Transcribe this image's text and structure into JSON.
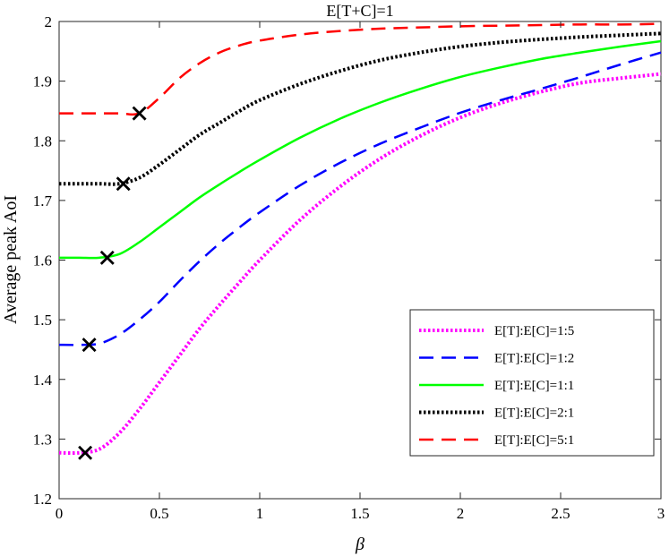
{
  "chart_data": {
    "type": "line",
    "title": "E[T+C]=1",
    "xlabel": "β",
    "ylabel": "Average peak AoI",
    "xlim": [
      0,
      3
    ],
    "ylim": [
      1.2,
      2
    ],
    "xticks": [
      0,
      0.5,
      1,
      1.5,
      2,
      2.5,
      3
    ],
    "xtick_labels": [
      "0",
      "0.5",
      "1",
      "1.5",
      "2",
      "2.5",
      "3"
    ],
    "yticks": [
      1.2,
      1.3,
      1.4,
      1.5,
      1.6,
      1.7,
      1.8,
      1.9,
      2
    ],
    "ytick_labels": [
      "1.2",
      "1.3",
      "1.4",
      "1.5",
      "1.6",
      "1.7",
      "1.8",
      "1.9",
      "2"
    ],
    "grid": false,
    "legend_position": "lower-right",
    "series": [
      {
        "name": "E[T]:E[C]=1:5",
        "color": "#ff00ff",
        "style": "dotted",
        "x": [
          0,
          0.1,
          0.2,
          0.3,
          0.4,
          0.5,
          0.6,
          0.7,
          0.8,
          0.9,
          1.0,
          1.2,
          1.4,
          1.6,
          1.8,
          2.0,
          2.2,
          2.4,
          2.6,
          2.8,
          3.0
        ],
        "y": [
          1.277,
          1.277,
          1.283,
          1.31,
          1.35,
          1.395,
          1.44,
          1.485,
          1.525,
          1.563,
          1.6,
          1.667,
          1.723,
          1.77,
          1.808,
          1.839,
          1.863,
          1.882,
          1.897,
          1.905,
          1.912
        ],
        "marker": {
          "x": 0.13,
          "y": 1.277
        }
      },
      {
        "name": "E[T]:E[C]=1:2",
        "color": "#0000ff",
        "style": "dashed",
        "x": [
          0,
          0.1,
          0.2,
          0.3,
          0.4,
          0.5,
          0.6,
          0.7,
          0.8,
          0.9,
          1.0,
          1.2,
          1.4,
          1.6,
          1.8,
          2.0,
          2.2,
          2.4,
          2.6,
          2.8,
          3.0
        ],
        "y": [
          1.458,
          1.458,
          1.46,
          1.475,
          1.5,
          1.53,
          1.565,
          1.598,
          1.628,
          1.655,
          1.68,
          1.725,
          1.763,
          1.795,
          1.822,
          1.847,
          1.868,
          1.887,
          1.907,
          1.928,
          1.948
        ],
        "marker": {
          "x": 0.15,
          "y": 1.458
        }
      },
      {
        "name": "E[T]:E[C]=1:1",
        "color": "#00ff00",
        "style": "solid",
        "x": [
          0,
          0.1,
          0.2,
          0.3,
          0.4,
          0.5,
          0.6,
          0.7,
          0.8,
          0.9,
          1.0,
          1.2,
          1.4,
          1.6,
          1.8,
          2.0,
          2.2,
          2.4,
          2.6,
          2.8,
          3.0
        ],
        "y": [
          1.604,
          1.604,
          1.604,
          1.61,
          1.63,
          1.655,
          1.68,
          1.705,
          1.727,
          1.748,
          1.768,
          1.805,
          1.837,
          1.864,
          1.887,
          1.907,
          1.923,
          1.937,
          1.948,
          1.958,
          1.967
        ],
        "marker": {
          "x": 0.24,
          "y": 1.604
        }
      },
      {
        "name": "E[T]:E[C]=2:1",
        "color": "#000000",
        "style": "dotted",
        "x": [
          0,
          0.1,
          0.2,
          0.3,
          0.4,
          0.5,
          0.6,
          0.7,
          0.8,
          0.9,
          1.0,
          1.2,
          1.4,
          1.6,
          1.8,
          2.0,
          2.2,
          2.4,
          2.6,
          2.8,
          3.0
        ],
        "y": [
          1.728,
          1.728,
          1.728,
          1.728,
          1.738,
          1.76,
          1.785,
          1.81,
          1.83,
          1.85,
          1.868,
          1.895,
          1.917,
          1.935,
          1.948,
          1.958,
          1.965,
          1.97,
          1.974,
          1.977,
          1.98
        ],
        "marker": {
          "x": 0.32,
          "y": 1.728
        }
      },
      {
        "name": "E[T]:E[C]=5:1",
        "color": "#ff0000",
        "style": "dashed",
        "x": [
          0,
          0.1,
          0.2,
          0.3,
          0.4,
          0.5,
          0.6,
          0.7,
          0.8,
          0.9,
          1.0,
          1.2,
          1.4,
          1.6,
          1.8,
          2.0,
          2.2,
          2.4,
          2.6,
          2.8,
          3.0
        ],
        "y": [
          1.846,
          1.846,
          1.846,
          1.846,
          1.846,
          1.872,
          1.905,
          1.93,
          1.948,
          1.96,
          1.968,
          1.978,
          1.984,
          1.988,
          1.99,
          1.992,
          1.993,
          1.994,
          1.995,
          1.995,
          1.996
        ],
        "marker": {
          "x": 0.4,
          "y": 1.846
        }
      }
    ]
  }
}
